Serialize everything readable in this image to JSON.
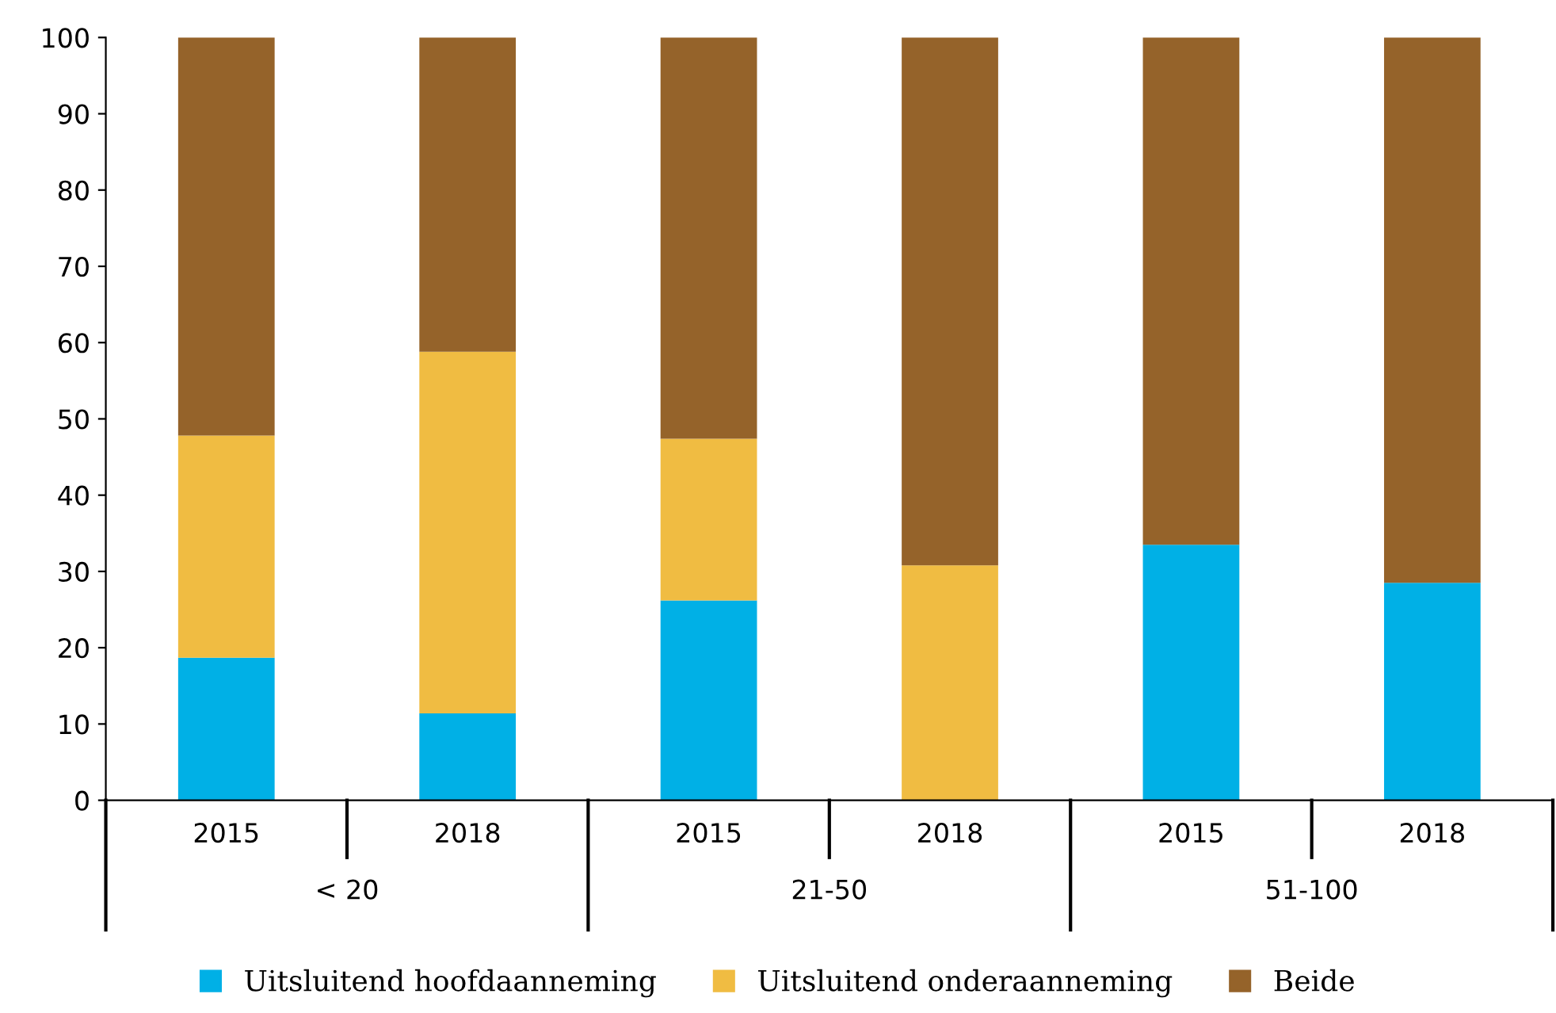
{
  "chart_data": {
    "type": "bar",
    "stacked": true,
    "categories": [
      "2015",
      "2018",
      "2015",
      "2018",
      "2015",
      "2018"
    ],
    "annotations": [
      "< 20",
      "21-50",
      "51-100"
    ],
    "series": [
      {
        "name": "Uitsluitend hoofdaanneming",
        "color": "#00b0e6",
        "values": [
          18.7,
          11.4,
          26.2,
          0,
          33.5,
          28.5
        ]
      },
      {
        "name": "Uitsluitend onderaanneming",
        "color": "#f0bc42",
        "values": [
          29.1,
          47.4,
          21.2,
          30.8,
          0,
          0
        ]
      },
      {
        "name": "Beide",
        "color": "#95632a",
        "values": [
          52.2,
          41.2,
          52.6,
          69.2,
          66.5,
          71.5
        ]
      }
    ],
    "ylim": [
      0,
      100
    ],
    "yticks": [
      0,
      10,
      20,
      30,
      40,
      50,
      60,
      70,
      80,
      90,
      100
    ],
    "grid": false,
    "legend": "bottom"
  }
}
